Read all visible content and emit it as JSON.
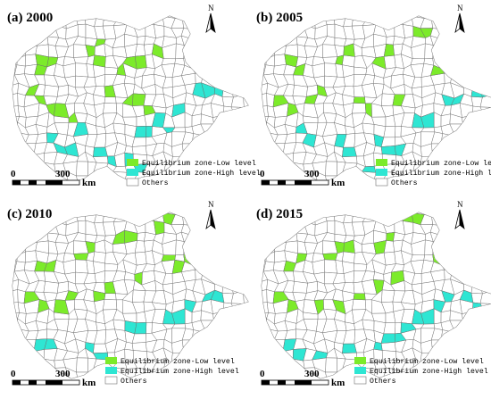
{
  "figure": {
    "colors": {
      "low": "#7CEB2A",
      "high": "#2EE6D3",
      "others": "#FFFFFF",
      "border": "#6E6E6E",
      "text": "#000000"
    },
    "panels": [
      {
        "title": "(a) 2000",
        "north": "N",
        "legend": [
          "Equilibrium zone-Low level",
          "Equilibrium zone-High level",
          "Others"
        ],
        "scale": {
          "zero": "0",
          "value": "300",
          "unit": "km"
        }
      },
      {
        "title": "(b) 2005",
        "north": "N",
        "legend": [
          "Equilibrium zone-Low level",
          "Equilibrium zone-High level",
          "Others"
        ],
        "scale": {
          "zero": "0",
          "value": "300",
          "unit": "km"
        }
      },
      {
        "title": "(c) 2010",
        "north": "N",
        "legend": [
          "Equilibrium zone-Low level",
          "Equilibrium zone-High level",
          "Others"
        ],
        "scale": {
          "zero": "0",
          "value": "300",
          "unit": "km"
        }
      },
      {
        "title": "(d) 2015",
        "north": "N",
        "legend": [
          "Equilibrium zone-Low level",
          "Equilibrium zone-High level",
          "Others"
        ],
        "scale": {
          "zero": "0",
          "value": "300",
          "unit": "km"
        }
      }
    ]
  }
}
